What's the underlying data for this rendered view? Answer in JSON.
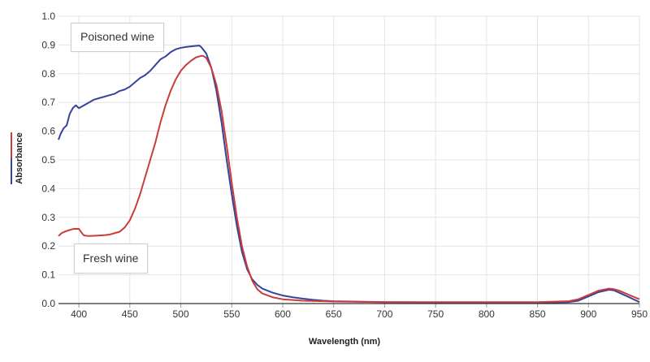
{
  "chart_data": {
    "type": "line",
    "title": "",
    "xlabel": "Wavelength (nm)",
    "ylabel": "Absorbance",
    "xlim": [
      380,
      950
    ],
    "ylim": [
      0.0,
      1.0
    ],
    "x_ticks": [
      "400",
      "450",
      "500",
      "550",
      "600",
      "650",
      "700",
      "750",
      "800",
      "850",
      "900",
      "950"
    ],
    "y_ticks": [
      "0.0",
      "0.1",
      "0.2",
      "0.3",
      "0.4",
      "0.5",
      "0.6",
      "0.7",
      "0.8",
      "0.9",
      "1.0"
    ],
    "grid": true,
    "series": [
      {
        "name": "Poisoned wine",
        "color": "#34449b",
        "x": [
          380,
          382,
          385,
          388,
          391,
          394,
          397,
          400,
          405,
          410,
          415,
          420,
          425,
          430,
          435,
          440,
          445,
          450,
          455,
          460,
          465,
          470,
          475,
          480,
          485,
          490,
          495,
          500,
          505,
          510,
          515,
          518,
          520,
          525,
          530,
          535,
          540,
          545,
          550,
          555,
          560,
          565,
          570,
          575,
          580,
          590,
          600,
          610,
          620,
          630,
          640,
          650,
          700,
          750,
          800,
          850,
          880,
          890,
          900,
          910,
          920,
          925,
          930,
          940,
          950
        ],
        "y": [
          0.57,
          0.59,
          0.61,
          0.62,
          0.66,
          0.68,
          0.69,
          0.68,
          0.69,
          0.7,
          0.71,
          0.715,
          0.72,
          0.725,
          0.73,
          0.74,
          0.745,
          0.755,
          0.77,
          0.785,
          0.795,
          0.81,
          0.83,
          0.85,
          0.86,
          0.875,
          0.885,
          0.89,
          0.893,
          0.895,
          0.897,
          0.898,
          0.893,
          0.87,
          0.82,
          0.74,
          0.63,
          0.5,
          0.38,
          0.27,
          0.18,
          0.12,
          0.085,
          0.065,
          0.052,
          0.038,
          0.028,
          0.022,
          0.017,
          0.013,
          0.01,
          0.008,
          0.005,
          0.004,
          0.003,
          0.003,
          0.005,
          0.01,
          0.025,
          0.04,
          0.048,
          0.046,
          0.038,
          0.022,
          0.005
        ]
      },
      {
        "name": "Fresh wine",
        "color": "#c93c3a",
        "x": [
          380,
          383,
          386,
          390,
          395,
          400,
          403,
          405,
          410,
          415,
          420,
          425,
          430,
          435,
          440,
          445,
          450,
          455,
          460,
          465,
          470,
          475,
          480,
          485,
          490,
          495,
          500,
          505,
          510,
          515,
          520,
          522,
          525,
          530,
          535,
          540,
          545,
          550,
          555,
          560,
          565,
          570,
          575,
          580,
          590,
          600,
          620,
          640,
          650,
          700,
          750,
          800,
          850,
          880,
          890,
          900,
          910,
          920,
          925,
          930,
          940,
          950
        ],
        "y": [
          0.235,
          0.245,
          0.25,
          0.255,
          0.26,
          0.26,
          0.245,
          0.237,
          0.235,
          0.236,
          0.237,
          0.238,
          0.24,
          0.245,
          0.25,
          0.265,
          0.29,
          0.33,
          0.38,
          0.44,
          0.5,
          0.56,
          0.63,
          0.69,
          0.74,
          0.78,
          0.81,
          0.83,
          0.845,
          0.857,
          0.862,
          0.862,
          0.855,
          0.82,
          0.76,
          0.67,
          0.55,
          0.42,
          0.3,
          0.2,
          0.13,
          0.08,
          0.05,
          0.035,
          0.022,
          0.015,
          0.01,
          0.008,
          0.007,
          0.005,
          0.005,
          0.005,
          0.005,
          0.008,
          0.015,
          0.03,
          0.045,
          0.052,
          0.05,
          0.045,
          0.03,
          0.015
        ]
      }
    ],
    "legend": {
      "placement": "inline-labels",
      "entries": [
        "Poisoned wine",
        "Fresh wine"
      ]
    }
  }
}
